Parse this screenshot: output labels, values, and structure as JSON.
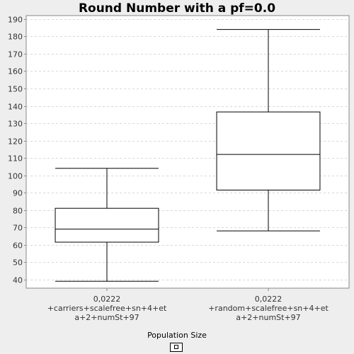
{
  "chart_data": {
    "type": "boxplot",
    "title": "Round Number with a pf=0.0",
    "xlabel": "",
    "ylabel": "",
    "ylim": [
      35,
      192
    ],
    "yticks": [
      40,
      50,
      60,
      70,
      80,
      90,
      100,
      110,
      120,
      130,
      140,
      150,
      160,
      170,
      180,
      190
    ],
    "grid": true,
    "legend": {
      "title": "Population Size",
      "position": "bottom-center"
    },
    "categories": [
      [
        "0,0222",
        "+carriers+scalefree+sn+4+et",
        "a+2+numSt+97"
      ],
      [
        "0,0222",
        "+random+scalefree+sn+4+et",
        "a+2+numSt+97"
      ]
    ],
    "series": [
      {
        "boxes": [
          {
            "whisker_low": 39,
            "q1": 61.5,
            "median": 69,
            "q3": 81,
            "whisker_high": 104
          },
          {
            "whisker_low": 68,
            "q1": 91.5,
            "median": 112,
            "q3": 136.5,
            "whisker_high": 184
          }
        ]
      }
    ],
    "colors": {
      "plot_bg": "#ffffff",
      "page_bg": "#eeeeee",
      "box_fill": "#ffffff",
      "stroke": "#000000",
      "grid": "#d9d9d9"
    }
  }
}
